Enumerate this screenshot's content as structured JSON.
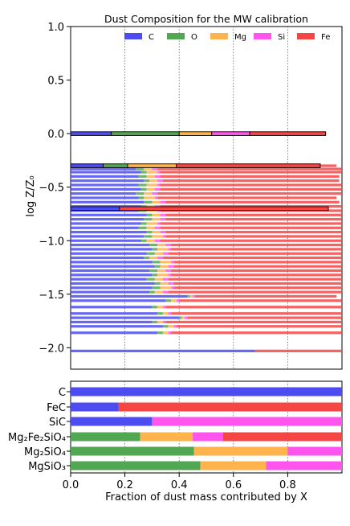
{
  "chart_data": {
    "type": "bar",
    "title": "Dust Composition for the MW calibration",
    "xlabel": "Fraction of dust mass contributed by X",
    "ylabel": "log Z/Z₀",
    "xlim": [
      0,
      1
    ],
    "ylim": [
      -2.2,
      1.0
    ],
    "yticks": [
      1.0,
      0.5,
      0.0,
      -0.5,
      -1.0,
      -1.5,
      -2.0
    ],
    "xticks": [
      0.0,
      0.2,
      0.4,
      0.6,
      0.8
    ],
    "legend": {
      "placement": "top",
      "entries": [
        "C",
        "O",
        "Mg",
        "Si",
        "Fe"
      ]
    },
    "colors": {
      "C": "#4c4cf0",
      "O": "#52a852",
      "Mg": "#ffb34d",
      "Si": "#ff55ee",
      "Fe": "#f54545"
    },
    "grid": "vertical dotted lines at 0.2, 0.4, 0.6, 0.8",
    "highlighted_bars": [
      {
        "logZ": 0.0,
        "C": 0.15,
        "O": 0.25,
        "Mg": 0.12,
        "Si": 0.14,
        "Fe": 0.28
      },
      {
        "logZ": -0.3,
        "C": 0.12,
        "O": 0.09,
        "Mg": 0.18,
        "Si": 0.0,
        "Fe": 0.53
      },
      {
        "logZ": -0.7,
        "C": 0.18,
        "O": 0.0,
        "Mg": 0.0,
        "Si": 0.0,
        "Fe": 0.77
      }
    ],
    "scatter_bars": {
      "logZ": [
        -0.3,
        -0.33,
        -0.36,
        -0.4,
        -0.44,
        -0.48,
        -0.52,
        -0.56,
        -0.6,
        -0.64,
        -0.68,
        -0.72,
        -0.76,
        -0.8,
        -0.84,
        -0.88,
        -0.92,
        -0.96,
        -1.0,
        -1.04,
        -1.08,
        -1.12,
        -1.16,
        -1.2,
        -1.24,
        -1.28,
        -1.32,
        -1.36,
        -1.4,
        -1.44,
        -1.48,
        -1.52,
        -1.56,
        -1.62,
        -1.68,
        -1.72,
        -1.76,
        -1.8,
        -1.86,
        -2.03
      ],
      "C": [
        0.25,
        0.24,
        0.26,
        0.25,
        0.27,
        0.25,
        0.26,
        0.24,
        0.25,
        0.27,
        0.26,
        0.25,
        0.28,
        0.27,
        0.26,
        0.25,
        0.28,
        0.27,
        0.26,
        0.29,
        0.3,
        0.28,
        0.27,
        0.3,
        0.31,
        0.29,
        0.3,
        0.28,
        0.31,
        0.3,
        0.29,
        0.43,
        0.35,
        0.3,
        0.32,
        0.4,
        0.3,
        0.34,
        0.32,
        0.68
      ],
      "O": [
        0.02,
        0.03,
        0.02,
        0.03,
        0.02,
        0.03,
        0.02,
        0.03,
        0.02,
        0.03,
        0.02,
        0.03,
        0.02,
        0.03,
        0.02,
        0.03,
        0.02,
        0.03,
        0.02,
        0.03,
        0.02,
        0.03,
        0.02,
        0.03,
        0.02,
        0.03,
        0.02,
        0.03,
        0.02,
        0.03,
        0.02,
        0.01,
        0.02,
        0.02,
        0.02,
        0.01,
        0.02,
        0.02,
        0.02,
        0.0
      ],
      "Mg": [
        0.03,
        0.03,
        0.04,
        0.03,
        0.03,
        0.04,
        0.03,
        0.03,
        0.04,
        0.03,
        0.03,
        0.04,
        0.03,
        0.03,
        0.04,
        0.03,
        0.03,
        0.04,
        0.03,
        0.03,
        0.04,
        0.03,
        0.03,
        0.04,
        0.03,
        0.03,
        0.04,
        0.03,
        0.03,
        0.04,
        0.03,
        0.01,
        0.02,
        0.02,
        0.02,
        0.01,
        0.02,
        0.02,
        0.02,
        0.0
      ],
      "Si": [
        0.02,
        0.02,
        0.01,
        0.02,
        0.02,
        0.01,
        0.02,
        0.02,
        0.01,
        0.02,
        0.02,
        0.01,
        0.02,
        0.02,
        0.01,
        0.02,
        0.02,
        0.01,
        0.02,
        0.02,
        0.01,
        0.02,
        0.02,
        0.01,
        0.02,
        0.02,
        0.01,
        0.02,
        0.02,
        0.01,
        0.02,
        0.01,
        0.01,
        0.01,
        0.01,
        0.01,
        0.01,
        0.01,
        0.01,
        0.0
      ],
      "Fe": [
        0.66,
        0.68,
        0.67,
        0.66,
        0.65,
        0.67,
        0.67,
        0.68,
        0.66,
        0.64,
        0.67,
        0.67,
        0.65,
        0.65,
        0.67,
        0.67,
        0.65,
        0.65,
        0.67,
        0.63,
        0.63,
        0.64,
        0.66,
        0.62,
        0.62,
        0.63,
        0.63,
        0.64,
        0.62,
        0.62,
        0.64,
        0.52,
        0.6,
        0.65,
        0.63,
        0.57,
        0.65,
        0.61,
        0.63,
        0.32
      ]
    },
    "compounds": [
      {
        "label": "C",
        "C": 1.0,
        "O": 0.0,
        "Mg": 0.0,
        "Si": 0.0,
        "Fe": 0.0
      },
      {
        "label": "FeC",
        "C": 0.177,
        "O": 0.0,
        "Mg": 0.0,
        "Si": 0.0,
        "Fe": 0.823
      },
      {
        "label": "SiC",
        "C": 0.3,
        "O": 0.0,
        "Mg": 0.0,
        "Si": 0.7,
        "Fe": 0.0
      },
      {
        "label": "Mg₂Fe₂SiO₄",
        "C": 0.0,
        "O": 0.256,
        "Mg": 0.194,
        "Si": 0.112,
        "Fe": 0.438
      },
      {
        "label": "Mg₂SiO₄",
        "C": 0.0,
        "O": 0.455,
        "Mg": 0.345,
        "Si": 0.2,
        "Fe": 0.0
      },
      {
        "label": "MgSiO₃",
        "C": 0.0,
        "O": 0.478,
        "Mg": 0.242,
        "Si": 0.28,
        "Fe": 0.0
      }
    ]
  }
}
